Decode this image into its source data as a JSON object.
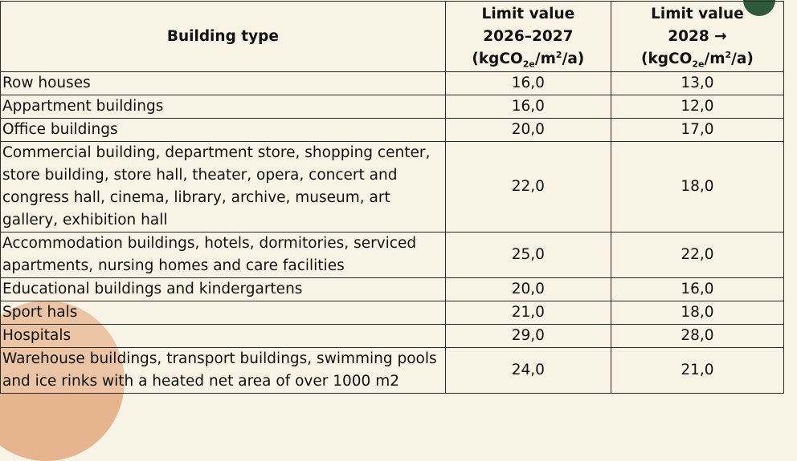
{
  "header": {
    "building_type": "Building type",
    "col_a_title": "Limit value",
    "col_a_period": "2026–2027",
    "col_b_title": "Limit value",
    "col_b_period": "2028 →",
    "unit_prefix": "(kgCO",
    "unit_sub": "2e",
    "unit_mid": "/m",
    "unit_sup": "2",
    "unit_suffix": "/a)"
  },
  "rows": [
    {
      "type": "Row houses",
      "a": "16,0",
      "b": "13,0"
    },
    {
      "type": "Appartment buildings",
      "a": "16,0",
      "b": "12,0"
    },
    {
      "type": "Office buildings",
      "a": "20,0",
      "b": "17,0"
    },
    {
      "type": "Commercial building, department store, shopping center, store building, store hall, theater, opera, concert and congress hall, cinema, library, archive, museum, art gallery, exhibition hall",
      "a": "22,0",
      "b": "18,0"
    },
    {
      "type": "Accommodation buildings, hotels, dormitories, serviced apartments, nursing homes and care facilities",
      "a": "25,0",
      "b": "22,0"
    },
    {
      "type": "Educational buildings and kindergartens",
      "a": "20,0",
      "b": "16,0"
    },
    {
      "type": "Sport hals",
      "a": "21,0",
      "b": "18,0"
    },
    {
      "type": "Hospitals",
      "a": "29,0",
      "b": "28,0"
    },
    {
      "type": "Warehouse buildings, transport buildings, swimming pools and ice rinks with a heated net area of over 1000 m2",
      "a": "24,0",
      "b": "21,0"
    }
  ]
}
